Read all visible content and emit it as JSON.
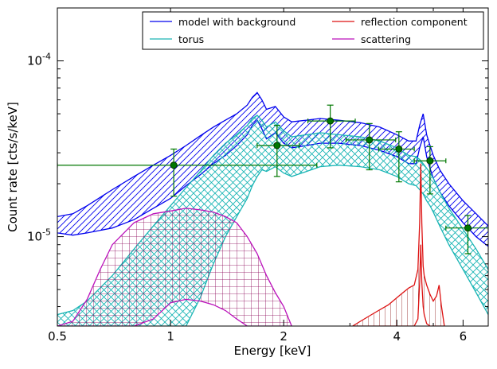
{
  "chart_data": {
    "type": "line",
    "xscale": "log",
    "yscale": "log",
    "xlim": [
      0.5,
      7.0
    ],
    "ylim": [
      3.1e-06,
      0.0002
    ],
    "xlabel": "Energy [keV]",
    "ylabel": "Count rate [cts/s/keV]",
    "x_ticks": [
      {
        "value": 0.5,
        "label": "0.5"
      },
      {
        "value": 1,
        "label": "1"
      },
      {
        "value": 2,
        "label": "2"
      },
      {
        "value": 4,
        "label": "4"
      },
      {
        "value": 6,
        "label": "6"
      }
    ],
    "y_ticks": [
      {
        "value": 1e-05,
        "base": "10",
        "exp": "-5"
      },
      {
        "value": 0.0001,
        "base": "10",
        "exp": "-4"
      }
    ],
    "legend": {
      "placement": "top-right",
      "columns": 2,
      "items": [
        {
          "label": "model with background",
          "color": "#0000ee"
        },
        {
          "label": "torus",
          "color": "#1ab5b5"
        },
        {
          "label": "reflection component",
          "color": "#dd1111"
        },
        {
          "label": "scattering",
          "color": "#bb11bb"
        }
      ]
    },
    "data_points": {
      "color": "#007700",
      "points": [
        {
          "x": 1.02,
          "y": 2.55e-05,
          "xerr": [
            0.5,
            2.45
          ],
          "yerr": [
            1.7e-05,
            3.15e-05
          ]
        },
        {
          "x": 1.92,
          "y": 3.3e-05,
          "xerr": [
            1.7,
            2.2
          ],
          "yerr": [
            2.2e-05,
            4.3e-05
          ]
        },
        {
          "x": 2.66,
          "y": 4.55e-05,
          "xerr": [
            2.32,
            3.1
          ],
          "yerr": [
            3.2e-05,
            5.6e-05
          ]
        },
        {
          "x": 3.38,
          "y": 3.55e-05,
          "xerr": [
            2.93,
            3.97
          ],
          "yerr": [
            2.4e-05,
            4.4e-05
          ]
        },
        {
          "x": 4.05,
          "y": 3.15e-05,
          "xerr": [
            3.58,
            4.45
          ],
          "yerr": [
            2.05e-05,
            3.95e-05
          ]
        },
        {
          "x": 4.9,
          "y": 2.7e-05,
          "xerr": [
            4.45,
            5.4
          ],
          "yerr": [
            1.75e-05,
            3.25e-05
          ]
        },
        {
          "x": 6.18,
          "y": 1.12e-05,
          "xerr": [
            5.4,
            7.0
          ],
          "yerr": [
            8e-06,
            1.32e-05
          ]
        }
      ]
    },
    "bands": [
      {
        "name": "model with background",
        "color": "#0000ee",
        "hatch": "diagonal",
        "x": [
          0.5,
          0.55,
          0.6,
          0.7,
          0.8,
          0.9,
          1.0,
          1.1,
          1.2,
          1.3,
          1.4,
          1.5,
          1.6,
          1.65,
          1.7,
          1.75,
          1.8,
          1.9,
          2.0,
          2.1,
          2.3,
          2.5,
          2.8,
          3.2,
          3.6,
          4.0,
          4.3,
          4.5,
          4.6,
          4.7,
          4.8,
          4.9,
          5.0,
          5.2,
          5.5,
          6.0,
          6.5,
          7.0
        ],
        "upper": [
          1.3e-05,
          1.35e-05,
          1.5e-05,
          1.85e-05,
          2.2e-05,
          2.55e-05,
          2.9e-05,
          3.3e-05,
          3.75e-05,
          4.2e-05,
          4.6e-05,
          5e-05,
          5.6e-05,
          6.2e-05,
          6.6e-05,
          6e-05,
          5.3e-05,
          5.5e-05,
          4.8e-05,
          4.5e-05,
          4.6e-05,
          4.7e-05,
          4.6e-05,
          4.45e-05,
          4.2e-05,
          3.8e-05,
          3.5e-05,
          3.5e-05,
          4.3e-05,
          5e-05,
          3.8e-05,
          3.3e-05,
          2.9e-05,
          2.4e-05,
          2e-05,
          1.6e-05,
          1.35e-05,
          1.15e-05
        ],
        "lower": [
          1.05e-05,
          1.02e-05,
          1.05e-05,
          1.12e-05,
          1.25e-05,
          1.45e-05,
          1.65e-05,
          1.95e-05,
          2.25e-05,
          2.6e-05,
          2.9e-05,
          3.3e-05,
          3.8e-05,
          4.3e-05,
          4.6e-05,
          4.1e-05,
          3.6e-05,
          3.9e-05,
          3.4e-05,
          3.2e-05,
          3.3e-05,
          3.4e-05,
          3.4e-05,
          3.3e-05,
          3.1e-05,
          2.85e-05,
          2.6e-05,
          2.6e-05,
          3.2e-05,
          3.7e-05,
          2.85e-05,
          2.45e-05,
          2.15e-05,
          1.8e-05,
          1.5e-05,
          1.2e-05,
          1e-05,
          8.8e-06
        ]
      },
      {
        "name": "torus",
        "color": "#1ab5b5",
        "hatch": "cross",
        "x": [
          0.5,
          0.55,
          0.6,
          0.7,
          0.8,
          0.9,
          1.0,
          1.1,
          1.2,
          1.3,
          1.4,
          1.5,
          1.6,
          1.65,
          1.7,
          1.75,
          1.8,
          1.9,
          2.0,
          2.1,
          2.3,
          2.5,
          2.8,
          3.2,
          3.6,
          4.0,
          4.3,
          4.5,
          4.6,
          4.7,
          4.8,
          4.9,
          5.0,
          5.2,
          5.5,
          6.0,
          6.5,
          7.0
        ],
        "upper": [
          3.6e-06,
          3.8e-06,
          4.3e-06,
          6e-06,
          8.5e-06,
          1.15e-05,
          1.5e-05,
          1.9e-05,
          2.35e-05,
          2.9e-05,
          3.4e-05,
          3.8e-05,
          4.3e-05,
          4.7e-05,
          4.9e-05,
          4.6e-05,
          4.2e-05,
          4.5e-05,
          4e-05,
          3.7e-05,
          3.8e-05,
          3.9e-05,
          3.8e-05,
          3.7e-05,
          3.5e-05,
          3.2e-05,
          2.9e-05,
          2.85e-05,
          2.75e-05,
          2.6e-05,
          2.45e-05,
          2.3e-05,
          2.15e-05,
          1.8e-05,
          1.45e-05,
          1.1e-05,
          8.5e-06,
          6.5e-06
        ],
        "lower": [
          3.1e-06,
          3.1e-06,
          3.1e-06,
          3.1e-06,
          3.1e-06,
          3.1e-06,
          3.1e-06,
          3.1e-06,
          4.5e-06,
          7e-06,
          1e-05,
          1.3e-05,
          1.65e-05,
          1.95e-05,
          2.2e-05,
          2.4e-05,
          2.35e-05,
          2.5e-05,
          2.3e-05,
          2.2e-05,
          2.35e-05,
          2.5e-05,
          2.55e-05,
          2.5e-05,
          2.4e-05,
          2.2e-05,
          2e-05,
          1.95e-05,
          1.85e-05,
          1.75e-05,
          1.6e-05,
          1.5e-05,
          1.38e-05,
          1.15e-05,
          9e-06,
          6.5e-06,
          4.8e-06,
          3.6e-06
        ]
      },
      {
        "name": "scattering",
        "color": "#bb11bb",
        "hatch": "grid",
        "x": [
          0.5,
          0.55,
          0.6,
          0.65,
          0.7,
          0.8,
          0.9,
          1.0,
          1.1,
          1.2,
          1.3,
          1.4,
          1.5,
          1.6,
          1.7,
          1.8,
          1.9,
          2.0,
          2.1
        ],
        "upper": [
          3.1e-06,
          3.3e-06,
          4.4e-06,
          6.5e-06,
          9e-06,
          1.2e-05,
          1.35e-05,
          1.4e-05,
          1.45e-05,
          1.42e-05,
          1.38e-05,
          1.3e-05,
          1.2e-05,
          1e-05,
          8e-06,
          6e-06,
          4.8e-06,
          4e-06,
          3.1e-06
        ],
        "lower": [
          3.1e-06,
          3.1e-06,
          3.1e-06,
          3.1e-06,
          3.1e-06,
          3.1e-06,
          3.4e-06,
          4.2e-06,
          4.4e-06,
          4.3e-06,
          4.1e-06,
          3.8e-06,
          3.4e-06,
          3.1e-06,
          3.1e-06,
          3.1e-06,
          3.1e-06,
          3.1e-06,
          3.1e-06
        ]
      },
      {
        "name": "reflection component",
        "color": "#dd1111",
        "hatch": "vertical",
        "x": [
          3.05,
          3.2,
          3.5,
          3.8,
          4.1,
          4.3,
          4.45,
          4.55,
          4.6,
          4.63,
          4.66,
          4.7,
          4.73,
          4.8,
          4.9,
          5.0,
          5.1,
          5.18,
          5.25,
          5.35
        ],
        "upper": [
          3.1e-06,
          3.3e-06,
          3.7e-06,
          4.1e-06,
          4.7e-06,
          5.1e-06,
          5.3e-06,
          6.5e-06,
          1.2e-05,
          2.6e-05,
          1.2e-05,
          6.8e-06,
          6e-06,
          5.3e-06,
          4.7e-06,
          4.3e-06,
          4.6e-06,
          5.3e-06,
          4.1e-06,
          3.1e-06
        ],
        "lower": [
          3.1e-06,
          3.1e-06,
          3.1e-06,
          3.1e-06,
          3.1e-06,
          3.1e-06,
          3.1e-06,
          3.4e-06,
          5.5e-06,
          9e-06,
          5.5e-06,
          4e-06,
          3.6e-06,
          3.2e-06,
          3.1e-06,
          3.1e-06,
          3.1e-06,
          3.1e-06,
          3.1e-06,
          3.1e-06
        ]
      }
    ]
  }
}
